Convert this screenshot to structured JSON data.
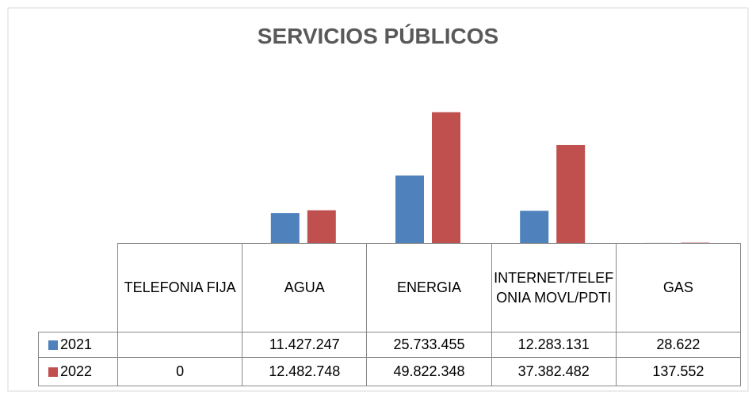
{
  "chart_data": {
    "type": "bar",
    "title": "SERVICIOS PÚBLICOS",
    "categories": [
      "TELEFONIA FIJA",
      "AGUA",
      "ENERGIA",
      "INTERNET/TELEFONIA MOVL/PDTI",
      "GAS"
    ],
    "series": [
      {
        "name": "2021",
        "color": "#4f81bd",
        "values": [
          null,
          11427247,
          25733455,
          12283131,
          28622
        ],
        "value_labels": [
          null,
          "11.427.247",
          "25.733.455",
          "12.283.131",
          "28.622"
        ]
      },
      {
        "name": "2022",
        "color": "#c0504d",
        "values": [
          0,
          12482748,
          49822348,
          37382482,
          137552
        ],
        "value_labels": [
          "0",
          "12.482.748",
          "49.822.348",
          "37.382.482",
          "137.552"
        ]
      }
    ],
    "ylim": [
      0,
      60000000
    ]
  }
}
